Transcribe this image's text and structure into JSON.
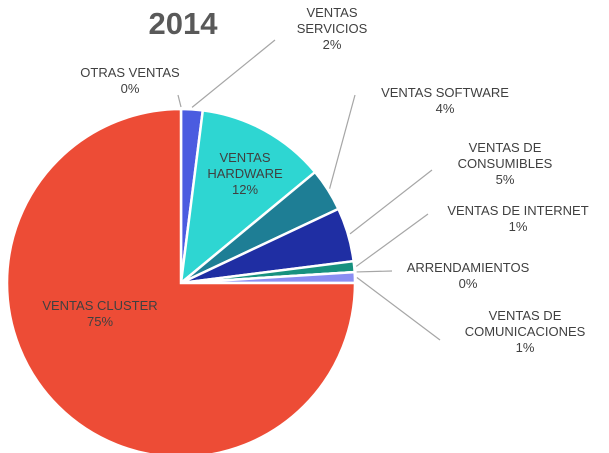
{
  "chart_data": {
    "type": "pie",
    "title": "2014",
    "categories": [
      "OTRAS VENTAS",
      "VENTAS SERVICIOS",
      "VENTAS HARDWARE",
      "VENTAS SOFTWARE",
      "VENTAS DE CONSUMIBLES",
      "VENTAS DE INTERNET",
      "ARRENDAMIENTOS",
      "VENTAS DE COMUNICACIONES",
      "VENTAS CLUSTER"
    ],
    "values": [
      0,
      2,
      12,
      4,
      5,
      1,
      0,
      1,
      75
    ],
    "value_labels": [
      "0%",
      "2%",
      "12%",
      "4%",
      "5%",
      "1%",
      "0%",
      "1%",
      "75%"
    ],
    "colors": [
      "#9a9cf2",
      "#4b5ce0",
      "#2ed6d2",
      "#1e7e95",
      "#1f2ea3",
      "#17917f",
      "#7f8fa8",
      "#8a8ef2",
      "#ed4c36"
    ]
  }
}
